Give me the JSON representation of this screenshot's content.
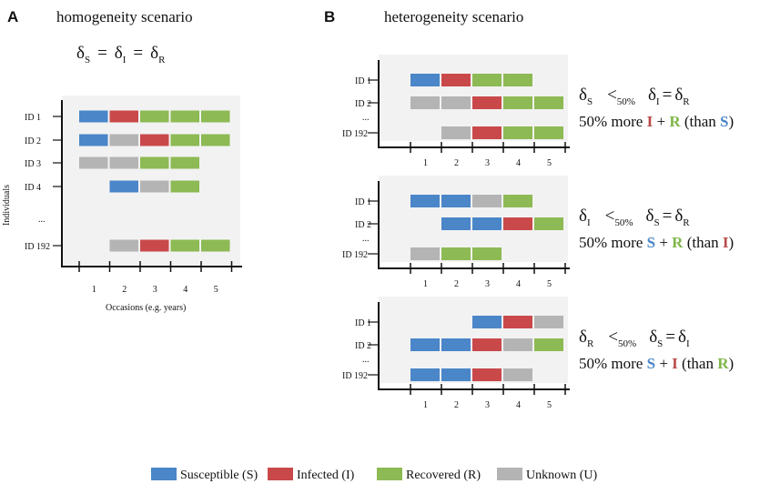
{
  "colors": {
    "S": "#4a86c8",
    "I": "#c9494b",
    "R": "#8dba54",
    "U": "#b4b4b4"
  },
  "panel_a": {
    "letter": "A",
    "title": "homogeneity scenario",
    "equation": {
      "d": "δ",
      "s1": "S",
      "eq": "=",
      "s2": "I",
      "s3": "R"
    },
    "y_axis_label": "Individuals",
    "x_axis_label": "Occasions (e.g. years)",
    "occasions": [
      "1",
      "2",
      "3",
      "4",
      "5"
    ],
    "ellipsis": "...",
    "rows": [
      {
        "id": "ID 1",
        "states": [
          "S",
          "I",
          "R",
          "R",
          "R"
        ]
      },
      {
        "id": "ID 2",
        "states": [
          "S",
          "U",
          "I",
          "R",
          "R"
        ]
      },
      {
        "id": "ID 3",
        "states": [
          "U",
          "U",
          "R",
          "R",
          null
        ]
      },
      {
        "id": "ID 4",
        "states": [
          null,
          "S",
          "U",
          "R",
          null
        ]
      },
      {
        "id": "ID 192",
        "states": [
          null,
          "U",
          "I",
          "R",
          "R"
        ]
      }
    ]
  },
  "panel_b": {
    "letter": "B",
    "title": "heterogeneity scenario",
    "occasions": [
      "1",
      "2",
      "3",
      "4",
      "5"
    ],
    "ellipsis": "...",
    "sub_panels": [
      {
        "rows": [
          {
            "id": "ID 1",
            "states": [
              "S",
              "I",
              "R",
              "R",
              null
            ]
          },
          {
            "id": "ID 2",
            "states": [
              "U",
              "U",
              "I",
              "R",
              "R"
            ]
          },
          {
            "id": "ID 192",
            "states": [
              null,
              "U",
              "I",
              "R",
              "R"
            ]
          }
        ],
        "relation": {
          "d": "δ",
          "a": "S",
          "lt": "<",
          "pct": "50%",
          "b": "I",
          "eq": "=",
          "c": "R"
        },
        "text": {
          "prefix": "50% more ",
          "x": "I",
          "plus": " + ",
          "y": "R",
          "mid": " (than ",
          "z": "S",
          "end": ")"
        }
      },
      {
        "rows": [
          {
            "id": "ID 1",
            "states": [
              "S",
              "S",
              "U",
              "R",
              null
            ]
          },
          {
            "id": "ID 2",
            "states": [
              null,
              "S",
              "S",
              "I",
              "R"
            ]
          },
          {
            "id": "ID 192",
            "states": [
              "U",
              "R",
              "R",
              null,
              null
            ]
          }
        ],
        "relation": {
          "d": "δ",
          "a": "I",
          "lt": "<",
          "pct": "50%",
          "b": "S",
          "eq": "=",
          "c": "R"
        },
        "text": {
          "prefix": "50% more ",
          "x": "S",
          "plus": " + ",
          "y": "R",
          "mid": " (than ",
          "z": "I",
          "end": ")"
        }
      },
      {
        "rows": [
          {
            "id": "ID 1",
            "states": [
              null,
              null,
              "S",
              "I",
              "U"
            ]
          },
          {
            "id": "ID 2",
            "states": [
              "S",
              "S",
              "I",
              "U",
              "R"
            ]
          },
          {
            "id": "ID 192",
            "states": [
              "S",
              "S",
              "I",
              "U",
              null
            ]
          }
        ],
        "relation": {
          "d": "δ",
          "a": "R",
          "lt": "<",
          "pct": "50%",
          "b": "S",
          "eq": "=",
          "c": "I"
        },
        "text": {
          "prefix": "50% more ",
          "x": "S",
          "plus": " + ",
          "y": "I",
          "mid": " (than ",
          "z": "R",
          "end": ")"
        }
      }
    ]
  },
  "legend": [
    {
      "state": "S",
      "label": "Susceptible (S)"
    },
    {
      "state": "I",
      "label": "Infected (I)"
    },
    {
      "state": "R",
      "label": "Recovered (R)"
    },
    {
      "state": "U",
      "label": "Unknown (U)"
    }
  ]
}
